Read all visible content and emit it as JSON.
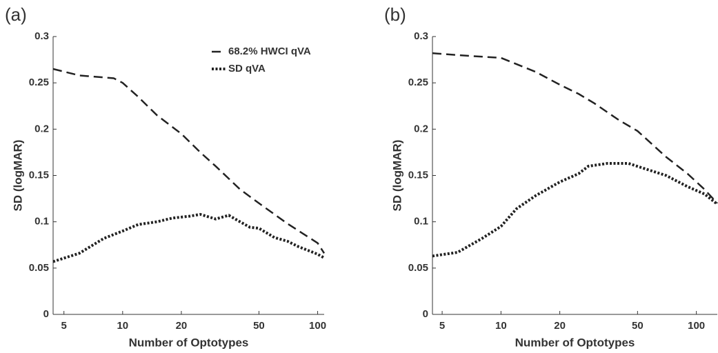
{
  "chart_data": [
    {
      "type": "line",
      "title": "(a)",
      "xlabel": "Number of Optotypes",
      "ylabel": "SD (logMAR)",
      "xscale": "log",
      "xlim": [
        4.4,
        108
      ],
      "xticks": [
        5,
        10,
        20,
        50,
        100
      ],
      "ylim": [
        0,
        0.3
      ],
      "yticks": [
        0,
        0.05,
        0.1,
        0.15,
        0.2,
        0.25,
        0.3
      ],
      "legend": "top-right",
      "series": [
        {
          "name": "68.2% HWCI qVA",
          "color": "#222222",
          "style": "dashed",
          "x": [
            4.4,
            6,
            9,
            10,
            12,
            15,
            20,
            25,
            30,
            40,
            50,
            70,
            100,
            108
          ],
          "values": [
            0.265,
            0.258,
            0.255,
            0.25,
            0.235,
            0.215,
            0.195,
            0.175,
            0.16,
            0.135,
            0.12,
            0.098,
            0.077,
            0.066
          ]
        },
        {
          "name": "SD qVA",
          "color": "#222222",
          "style": "dotted",
          "x": [
            4.4,
            6,
            8,
            10,
            12,
            15,
            18,
            22,
            25,
            30,
            35,
            40,
            45,
            50,
            60,
            70,
            80,
            100,
            108
          ],
          "values": [
            0.057,
            0.066,
            0.082,
            0.09,
            0.097,
            0.1,
            0.104,
            0.106,
            0.108,
            0.103,
            0.107,
            0.1,
            0.094,
            0.093,
            0.083,
            0.079,
            0.073,
            0.065,
            0.061
          ]
        }
      ]
    },
    {
      "type": "line",
      "title": "(b)",
      "xlabel": "Number of Optotypes",
      "ylabel": "SD (logMAR)",
      "xscale": "log",
      "xlim": [
        4.46,
        128
      ],
      "xticks": [
        5,
        10,
        20,
        50,
        100
      ],
      "ylim": [
        0,
        0.3
      ],
      "yticks": [
        0,
        0.05,
        0.1,
        0.15,
        0.2,
        0.25,
        0.3
      ],
      "legend": false,
      "series": [
        {
          "color": "#222222",
          "style": "dashed",
          "x": [
            4.46,
            7,
            10,
            15,
            20,
            25,
            30,
            40,
            50,
            70,
            90,
            110,
            128
          ],
          "values": [
            0.282,
            0.279,
            0.277,
            0.262,
            0.248,
            0.238,
            0.228,
            0.21,
            0.198,
            0.17,
            0.152,
            0.135,
            0.12
          ]
        },
        {
          "color": "#222222",
          "style": "dotted",
          "x": [
            4.46,
            6,
            8,
            10,
            12,
            15,
            20,
            25,
            28,
            35,
            45,
            55,
            70,
            90,
            110,
            128
          ],
          "values": [
            0.063,
            0.067,
            0.082,
            0.095,
            0.114,
            0.128,
            0.143,
            0.152,
            0.16,
            0.163,
            0.163,
            0.157,
            0.15,
            0.138,
            0.13,
            0.119
          ]
        }
      ]
    }
  ]
}
